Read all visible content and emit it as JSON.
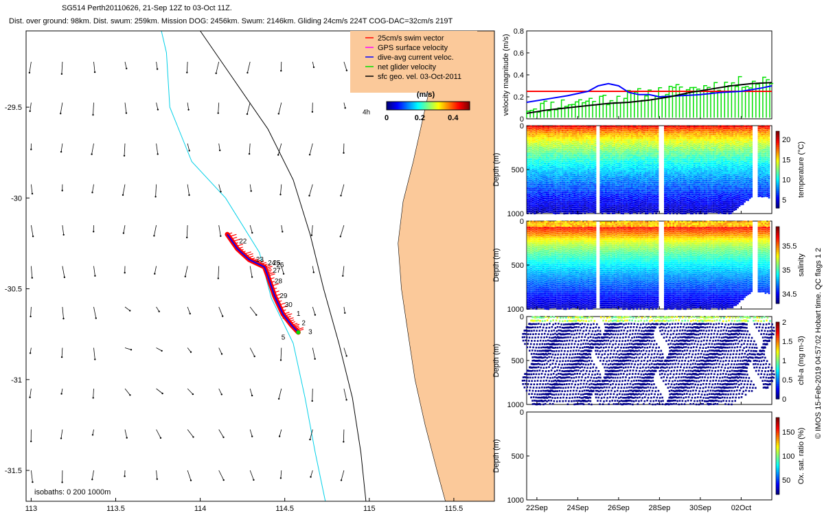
{
  "header": {
    "title_line": "SG514 Perth20110626, 21-Sep 12Z to 03-Oct 11Z.",
    "stats_line": "Dist. over ground: 98km. Dist. swum: 259km. Mission DOG: 2456km. Swum: 2146km. Gliding 24cm/s 224T COG-DAC=32cm/s 219T"
  },
  "side_note": "© IMOS 15-Feb-2019 04:57:02 Hobart time. QC flags 1  2",
  "colors": {
    "land": "#fbc99a",
    "track": "#ff0000",
    "dive_avg": "#0000ff",
    "net": "#00e000",
    "isobath_200": "#00d0e8",
    "isobath_1000": "#000000",
    "sfc": "#000000"
  },
  "chart_data": [
    {
      "type": "map",
      "x_ticks": [
        "113",
        "113.5",
        "114",
        "114.5",
        "115",
        "115.5"
      ],
      "x_tick_values": [
        113,
        113.5,
        114,
        114.5,
        115,
        115.5
      ],
      "y_ticks": [
        "-29.5",
        "-30",
        "-30.5",
        "-31",
        "-31.5"
      ],
      "y_tick_values": [
        -29.5,
        -30,
        -30.5,
        -31,
        -31.5
      ],
      "xlim": [
        112.97,
        115.74
      ],
      "ylim": [
        -31.67,
        -29.08
      ],
      "legend": [
        {
          "label": "25cm/s swim vector",
          "color": "#ff0000"
        },
        {
          "label": "GPS surface velocity",
          "color": "#ff00ff"
        },
        {
          "label": "dive-avg current veloc.",
          "color": "#0000ff"
        },
        {
          "label": "net glider velocity",
          "color": "#00e000"
        },
        {
          "label": "sfc geo. vel. 03-Oct-2011",
          "color": "#000000"
        }
      ],
      "speed_colorbar": {
        "title": "(m/s)",
        "ticks": [
          "0",
          "0.2",
          "0.4"
        ],
        "range": [
          0,
          0.5
        ]
      },
      "isobath_label": "isobaths: 0   200  1000m",
      "glider_track": [
        [
          114.16,
          -30.2
        ],
        [
          114.22,
          -30.28
        ],
        [
          114.29,
          -30.34
        ],
        [
          114.38,
          -30.38
        ],
        [
          114.4,
          -30.43
        ],
        [
          114.44,
          -30.54
        ],
        [
          114.49,
          -30.64
        ],
        [
          114.54,
          -30.7
        ],
        [
          114.58,
          -30.74
        ]
      ],
      "dive_labels": [
        {
          "text": "22",
          "lon": 114.23,
          "lat": -30.25
        },
        {
          "text": "23",
          "lon": 114.33,
          "lat": -30.35
        },
        {
          "text": "24",
          "lon": 114.4,
          "lat": -30.37
        },
        {
          "text": "25",
          "lon": 114.43,
          "lat": -30.37
        },
        {
          "text": "26",
          "lon": 114.45,
          "lat": -30.38
        },
        {
          "text": "27",
          "lon": 114.43,
          "lat": -30.41
        },
        {
          "text": "28",
          "lon": 114.44,
          "lat": -30.47
        },
        {
          "text": "29",
          "lon": 114.47,
          "lat": -30.55
        },
        {
          "text": "30",
          "lon": 114.5,
          "lat": -30.6
        },
        {
          "text": "1",
          "lon": 114.57,
          "lat": -30.65
        },
        {
          "text": "2",
          "lon": 114.6,
          "lat": -30.7
        },
        {
          "text": "3",
          "lon": 114.64,
          "lat": -30.75
        },
        {
          "text": "5",
          "lon": 114.48,
          "lat": -30.78
        }
      ],
      "corner_label": {
        "text": "4h",
        "lon": 114.96,
        "lat": -29.54
      }
    },
    {
      "type": "line",
      "ylabel": "velocity magnitude (m/s)",
      "ylim": [
        0,
        0.8
      ],
      "y_ticks": [
        0,
        0.2,
        0.4,
        0.6,
        0.8
      ],
      "x_days": [
        22,
        24,
        26,
        28,
        30,
        32
      ],
      "x_start_day": 21.5,
      "x_end_day": 33.5,
      "series": [
        {
          "color": "#ff0000",
          "x": [
            21.5,
            27.3,
            27.35,
            33.5
          ],
          "y": [
            0.25,
            0.25,
            0.25,
            0.25
          ]
        },
        {
          "color": "#0000ff",
          "x": [
            21.5,
            22.5,
            23.5,
            24.5,
            25.0,
            25.5,
            26.0,
            26.5,
            27.0,
            27.5,
            28.0,
            29.0,
            30.0,
            31.0,
            32.0,
            33.0,
            33.5
          ],
          "y": [
            0.15,
            0.18,
            0.21,
            0.25,
            0.3,
            0.32,
            0.3,
            0.24,
            0.22,
            0.22,
            0.2,
            0.21,
            0.22,
            0.24,
            0.25,
            0.28,
            0.3
          ]
        },
        {
          "color": "#000000",
          "x": [
            21.5,
            22.5,
            23.5,
            24.5,
            25.5,
            26.5,
            27.5,
            28.5,
            29.5,
            30.5,
            31.5,
            32.5,
            33.5
          ],
          "y": [
            0.05,
            0.08,
            0.1,
            0.12,
            0.14,
            0.15,
            0.17,
            0.2,
            0.24,
            0.27,
            0.3,
            0.32,
            0.33
          ]
        },
        {
          "color": "#00e000",
          "x": [
            21.5,
            33.5
          ],
          "y": [
            0.02,
            0.28
          ]
        }
      ]
    },
    {
      "type": "scatter",
      "variable": "temperature",
      "ylabel": "Depth (m)",
      "clabel": "temperature (°C)",
      "y_ticks": [
        0,
        500,
        1000
      ],
      "crange": [
        3,
        22
      ],
      "c_ticks": [
        5,
        10,
        15,
        20
      ],
      "colormap": "jet"
    },
    {
      "type": "scatter",
      "variable": "salinity",
      "ylabel": "Depth (m)",
      "clabel": "salinity",
      "y_ticks": [
        0,
        500,
        1000
      ],
      "crange": [
        34.3,
        35.9
      ],
      "c_ticks": [
        34.5,
        35,
        35.5
      ],
      "colormap": "jet"
    },
    {
      "type": "scatter",
      "variable": "chl-a",
      "ylabel": "Depth (m)",
      "clabel": "chl-a (mg m-3)",
      "y_ticks": [
        0,
        500,
        1000
      ],
      "crange": [
        0,
        2
      ],
      "c_ticks": [
        0,
        0.5,
        1,
        1.5,
        2
      ],
      "colormap": "jet"
    },
    {
      "type": "scatter",
      "variable": "oxygen saturation",
      "ylabel": "Depth (m)",
      "clabel": "Ox. sat. ratio (%)",
      "y_ticks": [
        0,
        500,
        1000
      ],
      "crange": [
        20,
        180
      ],
      "c_ticks": [
        50,
        100,
        150
      ],
      "colormap": "jet",
      "x_tick_labels": [
        "22Sep",
        "24Sep",
        "26Sep",
        "28Sep",
        "30Sep",
        "02Oct"
      ],
      "x_tick_days": [
        22,
        24,
        26,
        28,
        30,
        32
      ]
    }
  ]
}
